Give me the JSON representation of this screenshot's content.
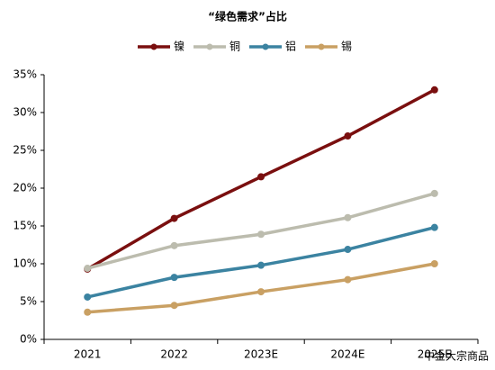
{
  "chart_data": {
    "type": "line",
    "title": "“绿色需求”占比",
    "categories": [
      "2021",
      "2022",
      "2023E",
      "2024E",
      "2025E"
    ],
    "series": [
      {
        "name": "镍",
        "color": "#7a0f0f",
        "values": [
          9.3,
          16.0,
          21.5,
          26.9,
          33.0
        ]
      },
      {
        "name": "铜",
        "color": "#bcbcae",
        "values": [
          9.4,
          12.4,
          13.9,
          16.1,
          19.3
        ]
      },
      {
        "name": "铝",
        "color": "#3b83a1",
        "values": [
          5.6,
          8.2,
          9.8,
          11.9,
          14.8
        ]
      },
      {
        "name": "锡",
        "color": "#c9a063",
        "values": [
          3.6,
          4.5,
          6.3,
          7.9,
          10.0
        ]
      }
    ],
    "ylim": [
      0,
      35
    ],
    "yticks": [
      {
        "value": 0,
        "label": "0%"
      },
      {
        "value": 5,
        "label": "5%"
      },
      {
        "value": 10,
        "label": "10%"
      },
      {
        "value": 15,
        "label": "15%"
      },
      {
        "value": 20,
        "label": "20%"
      },
      {
        "value": 25,
        "label": "25%"
      },
      {
        "value": 30,
        "label": "30%"
      },
      {
        "value": 35,
        "label": "35%"
      }
    ],
    "grid": false,
    "watermark": "中金大宗商品"
  }
}
